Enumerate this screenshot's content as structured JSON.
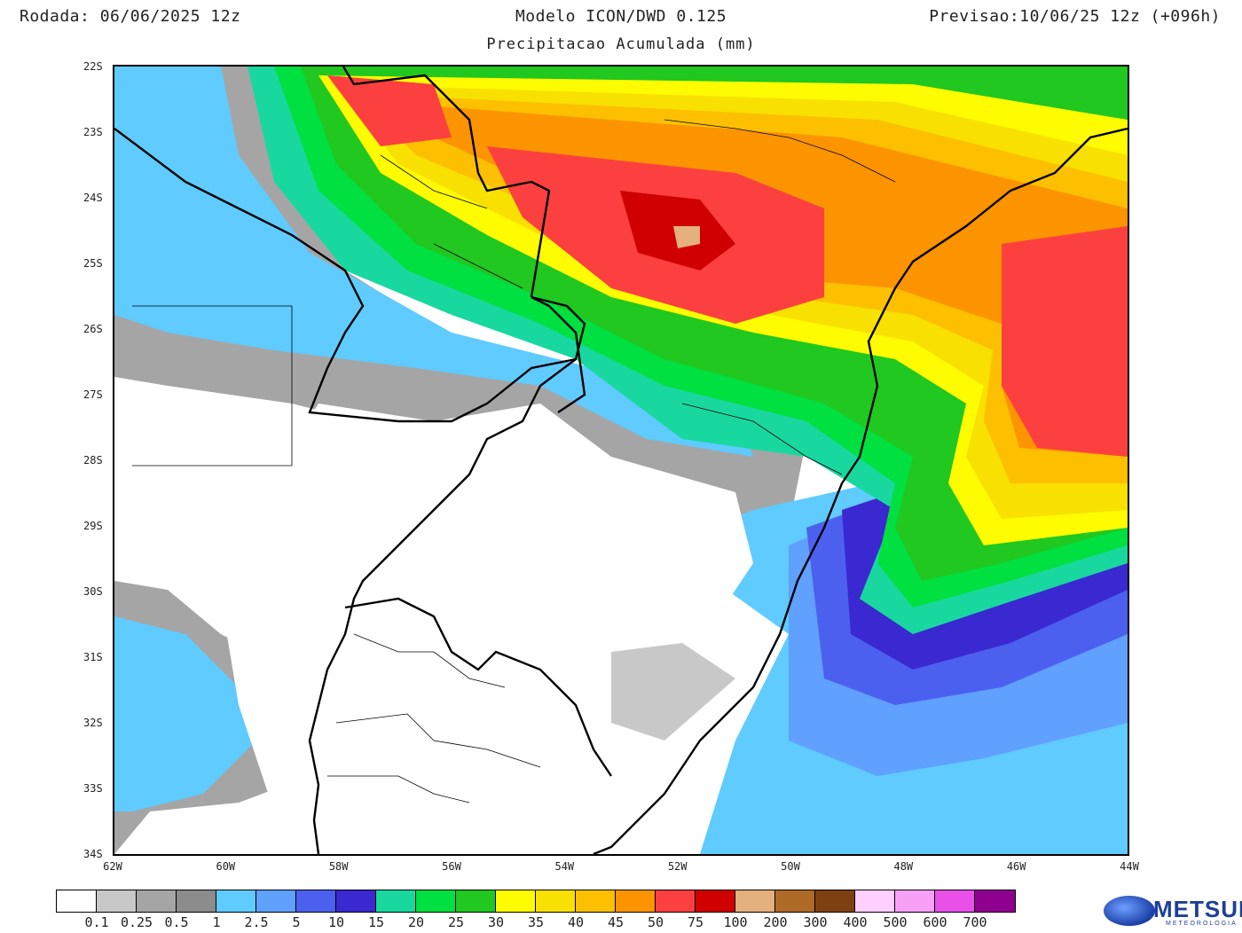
{
  "header": {
    "run": "Rodada: 06/06/2025 12z",
    "model": "Modelo ICON/DWD 0.125",
    "forecast": "Previsao:10/06/25 12z (+096h)",
    "subtitle": "Precipitacao Acumulada (mm)"
  },
  "axes": {
    "latitudes": [
      "22S",
      "23S",
      "24S",
      "25S",
      "26S",
      "27S",
      "28S",
      "29S",
      "30S",
      "31S",
      "32S",
      "33S",
      "34S"
    ],
    "longitudes": [
      "62W",
      "60W",
      "58W",
      "56W",
      "54W",
      "52W",
      "50W",
      "48W",
      "46W",
      "44W"
    ]
  },
  "colorbar": {
    "colors": [
      "#ffffff",
      "#c8c8c8",
      "#a5a5a5",
      "#8c8c8c",
      "#5fcbff",
      "#60a0ff",
      "#4c60f0",
      "#3a28d0",
      "#18d8a0",
      "#00e040",
      "#20c820",
      "#fffb00",
      "#f8e000",
      "#fcc000",
      "#fc9400",
      "#fc4040",
      "#d00000",
      "#e3b07e",
      "#b06a28",
      "#7e4010",
      "#ffd0ff",
      "#f8a0f8",
      "#e850e8",
      "#900090"
    ],
    "labels": [
      "0.1",
      "0.25",
      "0.5",
      "1",
      "2.5",
      "5",
      "10",
      "15",
      "20",
      "25",
      "30",
      "35",
      "40",
      "45",
      "50",
      "75",
      "100",
      "200",
      "300",
      "400",
      "500",
      "600",
      "700"
    ]
  },
  "logo": {
    "name": "METSUL",
    "tagline": "METEOROLOGIA"
  }
}
